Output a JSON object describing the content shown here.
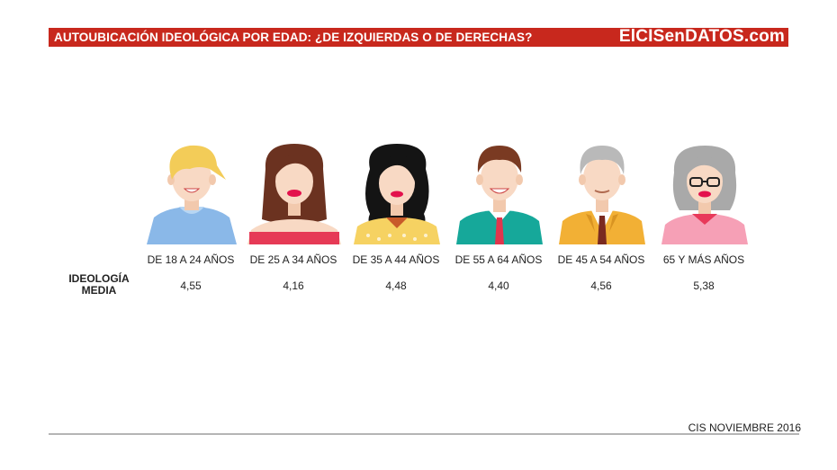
{
  "header": {
    "title": "AUTOUBICACIÓN IDEOLÓGICA POR EDAD: ¿DE IZQUIERDAS O DE DERECHAS?",
    "brand": "ElCISenDATOS.com",
    "color": "#c8281d"
  },
  "chart_data": {
    "type": "table",
    "title": "AUTOUBICACIÓN IDEOLÓGICA POR EDAD: ¿DE IZQUIERDAS O DE DERECHAS?",
    "row_label": "IDEOLOGÍA MEDIA",
    "categories": [
      "DE 18 A 24 AÑOS",
      "DE 25 A 34 AÑOS",
      "DE 35 A 44 AÑOS",
      "DE 55 A 64 AÑOS",
      "DE 45 A 54 AÑOS",
      "65 Y MÁS AÑOS"
    ],
    "values": [
      "4,55",
      "4,16",
      "4,48",
      "4,40",
      "4,56",
      "5,38"
    ]
  },
  "avatars": [
    {
      "icon": "young-man-blond-icon"
    },
    {
      "icon": "young-woman-brunette-icon"
    },
    {
      "icon": "woman-black-hair-icon"
    },
    {
      "icon": "man-red-tie-icon"
    },
    {
      "icon": "grey-haired-man-suit-icon"
    },
    {
      "icon": "elderly-woman-glasses-icon"
    }
  ],
  "footer": {
    "source": "CIS NOVIEMBRE 2016"
  }
}
